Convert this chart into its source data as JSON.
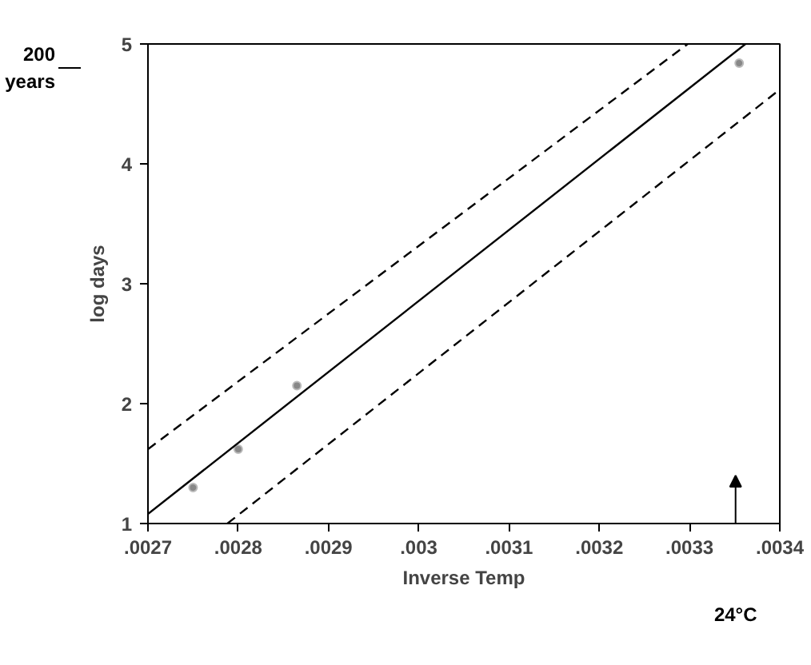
{
  "chart_data": {
    "type": "scatter",
    "xlabel": "Inverse Temp",
    "ylabel": "log days",
    "xlim": [
      0.0027,
      0.0034
    ],
    "ylim": [
      1,
      5
    ],
    "xticks": [
      {
        "value": 0.0027,
        "label": ".0027"
      },
      {
        "value": 0.0028,
        "label": ".0028"
      },
      {
        "value": 0.0029,
        "label": ".0029"
      },
      {
        "value": 0.003,
        "label": ".003"
      },
      {
        "value": 0.0031,
        "label": ".0031"
      },
      {
        "value": 0.0032,
        "label": ".0032"
      },
      {
        "value": 0.0033,
        "label": ".0033"
      },
      {
        "value": 0.0034,
        "label": ".0034"
      }
    ],
    "yticks": [
      1,
      2,
      3,
      4,
      5
    ],
    "grid": false,
    "series": [
      {
        "color": "#888888",
        "marker": "circle",
        "x": [
          0.00275,
          0.0028,
          0.002865,
          0.003355
        ],
        "values": [
          1.3,
          1.62,
          2.15,
          4.84
        ]
      },
      {
        "type": "line",
        "color": "#000000",
        "line_style": "solid",
        "marker": "none",
        "x": [
          0.0027,
          0.003362
        ],
        "values": [
          1.08,
          5
        ]
      },
      {
        "type": "line",
        "color": "#000000",
        "line_style": "dashed",
        "marker": "none",
        "x": [
          0.0027,
          0.003298
        ],
        "values": [
          1.62,
          5
        ]
      },
      {
        "type": "line",
        "color": "#000000",
        "line_style": "dashed",
        "marker": "none",
        "x": [
          0.002788,
          0.0034
        ],
        "values": [
          1,
          4.62
        ]
      }
    ],
    "annotations": [
      "200 years",
      "24°C"
    ]
  }
}
